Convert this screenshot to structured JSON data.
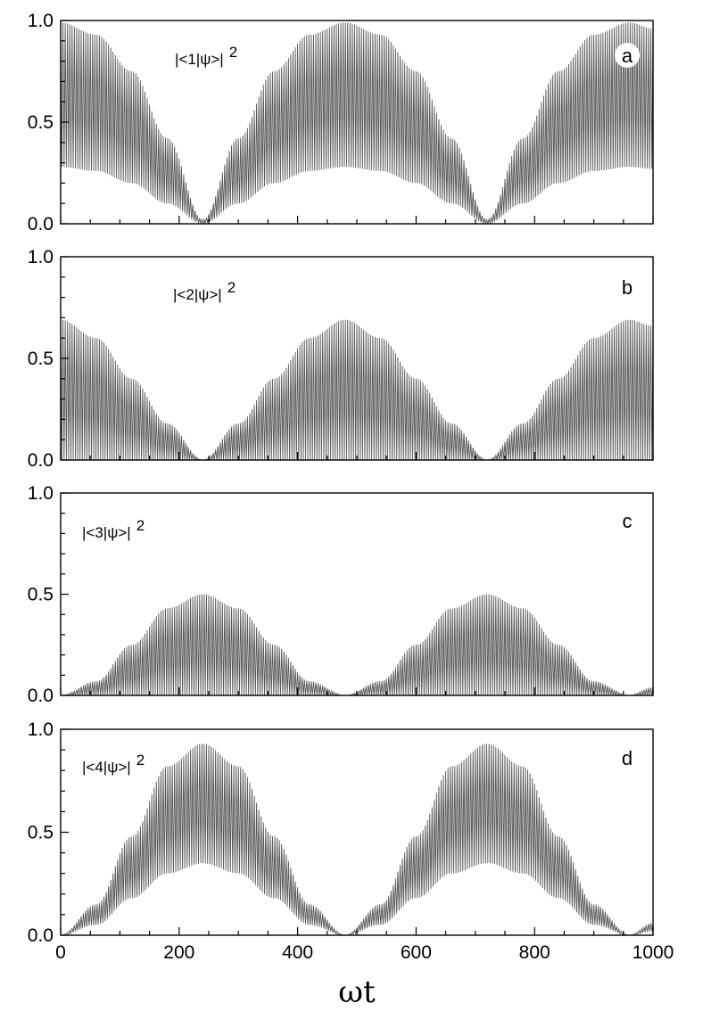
{
  "chart_data": [
    {
      "type": "line",
      "panel": "a",
      "annotation": "|<1|ψ>|",
      "annotation_sup": "2",
      "xlim": [
        0,
        1000
      ],
      "ylim": [
        0,
        1
      ],
      "yticks": [
        "0.0",
        "0.5",
        "1.0"
      ],
      "envelope_x": [
        0,
        60,
        120,
        180,
        240,
        300,
        360,
        420,
        480,
        540,
        600,
        660,
        720,
        780,
        840,
        900,
        960,
        1000
      ],
      "upper": [
        0.99,
        0.93,
        0.75,
        0.42,
        0.02,
        0.42,
        0.75,
        0.93,
        0.99,
        0.93,
        0.75,
        0.42,
        0.02,
        0.42,
        0.75,
        0.93,
        0.99,
        0.96
      ],
      "lower": [
        0.28,
        0.26,
        0.2,
        0.1,
        0.0,
        0.1,
        0.2,
        0.26,
        0.28,
        0.26,
        0.2,
        0.1,
        0.0,
        0.1,
        0.2,
        0.26,
        0.28,
        0.27
      ]
    },
    {
      "type": "line",
      "panel": "b",
      "annotation": "|<2|ψ>|",
      "annotation_sup": "2",
      "xlim": [
        0,
        1000
      ],
      "ylim": [
        0,
        1
      ],
      "yticks": [
        "0.0",
        "0.5",
        "1.0"
      ],
      "envelope_x": [
        0,
        60,
        120,
        180,
        240,
        300,
        360,
        420,
        480,
        540,
        600,
        660,
        720,
        780,
        840,
        900,
        960,
        1000
      ],
      "upper": [
        0.69,
        0.6,
        0.4,
        0.18,
        0.0,
        0.18,
        0.4,
        0.6,
        0.69,
        0.6,
        0.4,
        0.18,
        0.0,
        0.18,
        0.4,
        0.6,
        0.69,
        0.66
      ],
      "lower": [
        0.0,
        0.0,
        0.0,
        0.0,
        0.0,
        0.0,
        0.0,
        0.0,
        0.0,
        0.0,
        0.0,
        0.0,
        0.0,
        0.0,
        0.0,
        0.0,
        0.0,
        0.0
      ]
    },
    {
      "type": "line",
      "panel": "c",
      "annotation": "|<3|ψ>|",
      "annotation_sup": "2",
      "xlim": [
        0,
        1000
      ],
      "ylim": [
        0,
        1
      ],
      "yticks": [
        "0.0",
        "0.5",
        "1.0"
      ],
      "envelope_x": [
        0,
        60,
        120,
        180,
        240,
        300,
        360,
        420,
        480,
        540,
        600,
        660,
        720,
        780,
        840,
        900,
        960,
        1000
      ],
      "upper": [
        0.0,
        0.07,
        0.25,
        0.43,
        0.5,
        0.43,
        0.25,
        0.07,
        0.0,
        0.07,
        0.25,
        0.43,
        0.5,
        0.43,
        0.25,
        0.07,
        0.0,
        0.04
      ],
      "lower": [
        0.0,
        0.0,
        0.0,
        0.0,
        0.0,
        0.0,
        0.0,
        0.0,
        0.0,
        0.0,
        0.0,
        0.0,
        0.0,
        0.0,
        0.0,
        0.0,
        0.0,
        0.0
      ]
    },
    {
      "type": "line",
      "panel": "d",
      "annotation": "|<4|ψ>|",
      "annotation_sup": "2",
      "xlim": [
        0,
        1000
      ],
      "ylim": [
        0,
        1
      ],
      "yticks": [
        "0.0",
        "0.5",
        "1.0"
      ],
      "xticks": [
        "0",
        "200",
        "400",
        "600",
        "800",
        "1000"
      ],
      "xlabel": "ωt",
      "envelope_x": [
        0,
        60,
        120,
        180,
        240,
        300,
        360,
        420,
        480,
        540,
        600,
        660,
        720,
        780,
        840,
        900,
        960,
        1000
      ],
      "upper": [
        0.0,
        0.15,
        0.48,
        0.82,
        0.93,
        0.82,
        0.48,
        0.15,
        0.0,
        0.15,
        0.48,
        0.82,
        0.93,
        0.82,
        0.48,
        0.15,
        0.0,
        0.06
      ],
      "lower": [
        0.0,
        0.05,
        0.18,
        0.3,
        0.35,
        0.3,
        0.18,
        0.05,
        0.0,
        0.05,
        0.18,
        0.3,
        0.35,
        0.3,
        0.18,
        0.05,
        0.0,
        0.02
      ]
    }
  ],
  "colors": {
    "trace": "#555555",
    "axes": "#000000",
    "background": "#ffffff"
  }
}
